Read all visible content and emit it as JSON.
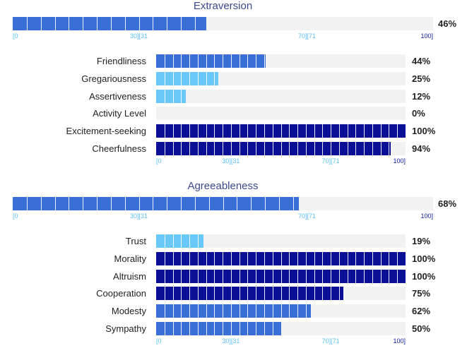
{
  "colors": {
    "track": "#f2f2f2",
    "medium": "#3a6fd8",
    "light": "#6bc8fb",
    "dark": "#0b0f96",
    "tick_low": "#5bc0f5",
    "tick_high": "#0b1a9e"
  },
  "tick_labels": {
    "low": "[0",
    "mid_low": "30][31",
    "mid_high": "70][71",
    "high": "100]"
  },
  "sections": [
    {
      "title": "Extraversion",
      "main": {
        "value": 46,
        "pct_label": "46%",
        "color": "medium"
      },
      "facets": [
        {
          "label": "Friendliness",
          "value": 44,
          "pct_label": "44%",
          "color": "medium"
        },
        {
          "label": "Gregariousness",
          "value": 25,
          "pct_label": "25%",
          "color": "light"
        },
        {
          "label": "Assertiveness",
          "value": 12,
          "pct_label": "12%",
          "color": "light"
        },
        {
          "label": "Activity Level",
          "value": 0,
          "pct_label": "0%",
          "color": "light"
        },
        {
          "label": "Excitement-seeking",
          "value": 100,
          "pct_label": "100%",
          "color": "dark"
        },
        {
          "label": "Cheerfulness",
          "value": 94,
          "pct_label": "94%",
          "color": "dark"
        }
      ]
    },
    {
      "title": "Agreeableness",
      "main": {
        "value": 68,
        "pct_label": "68%",
        "color": "medium"
      },
      "facets": [
        {
          "label": "Trust",
          "value": 19,
          "pct_label": "19%",
          "color": "light"
        },
        {
          "label": "Morality",
          "value": 100,
          "pct_label": "100%",
          "color": "dark"
        },
        {
          "label": "Altruism",
          "value": 100,
          "pct_label": "100%",
          "color": "dark"
        },
        {
          "label": "Cooperation",
          "value": 75,
          "pct_label": "75%",
          "color": "dark"
        },
        {
          "label": "Modesty",
          "value": 62,
          "pct_label": "62%",
          "color": "medium"
        },
        {
          "label": "Sympathy",
          "value": 50,
          "pct_label": "50%",
          "color": "medium"
        }
      ]
    }
  ]
}
